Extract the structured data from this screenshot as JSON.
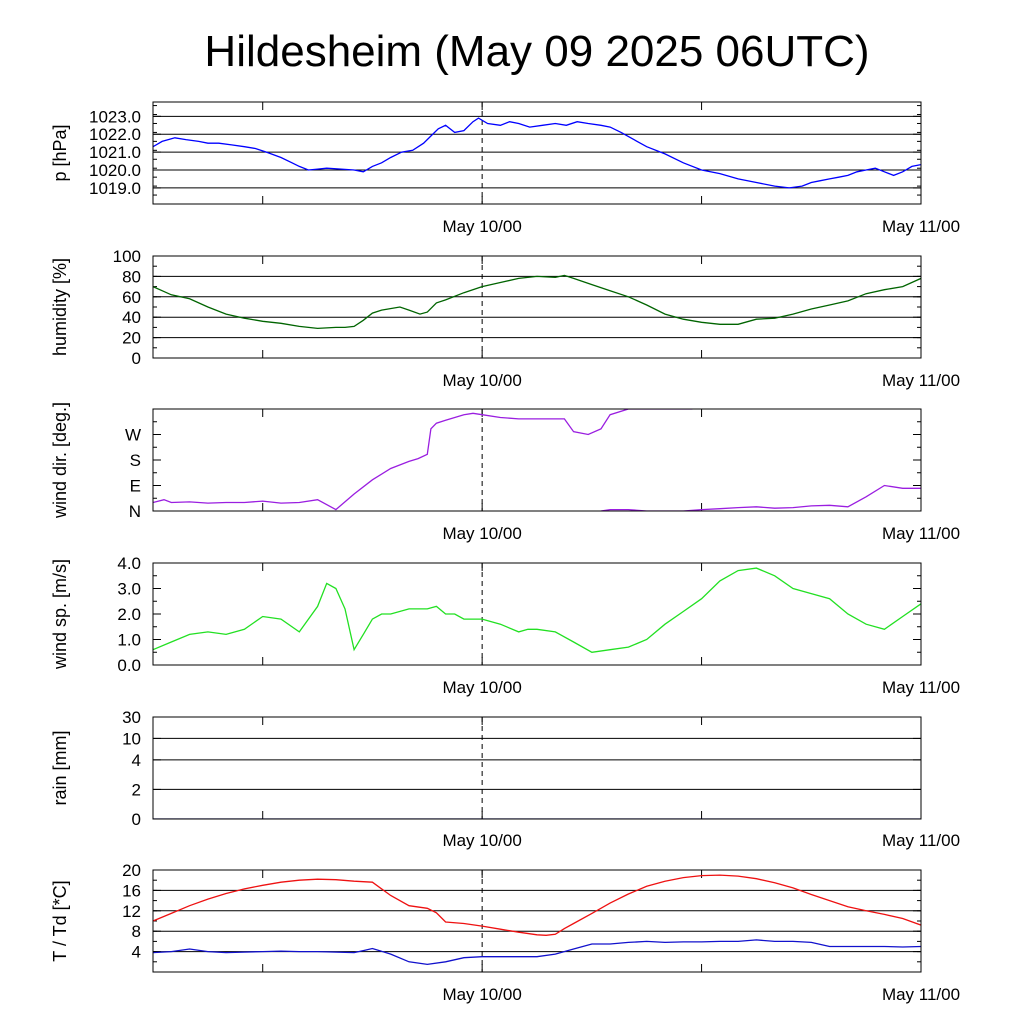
{
  "title": "Hildesheim (May 09 2025 06UTC)",
  "x_tick_labels": [
    "May 10/00",
    "May 11/00"
  ],
  "chart_data": [
    {
      "type": "line",
      "ylabel": "p [hPa]",
      "ylim": [
        1018.1,
        1023.8
      ],
      "yticks": [
        1019.0,
        1020.0,
        1021.0,
        1022.0,
        1023.0
      ],
      "ytick_labels": [
        "1019.0",
        "1020.0",
        "1021.0",
        "1022.0",
        "1023.0"
      ],
      "grid": true,
      "x_unit": "hours since May 09 06UTC",
      "xlim": [
        0,
        42
      ],
      "series": [
        {
          "color": "#0000ff",
          "x": [
            0,
            0.5,
            1.2,
            1.8,
            2.5,
            3.0,
            3.6,
            4.3,
            5.0,
            5.6,
            6.2,
            7.0,
            7.6,
            8.0,
            8.5,
            9.0,
            9.5,
            10.3,
            11.0,
            11.5,
            12.0,
            12.5,
            13.0,
            13.6,
            14.2,
            14.8,
            15.2,
            15.6,
            16.0,
            16.5,
            17.0,
            17.5,
            17.8,
            18.3,
            19.0,
            19.5,
            20.0,
            20.6,
            21.3,
            22.0,
            22.6,
            23.2,
            23.8,
            24.5,
            25.0,
            25.6,
            26.3,
            27.0,
            28.0,
            29.0,
            30.0,
            31.0,
            32.0,
            33.0,
            34.0,
            34.8,
            35.5,
            36.0,
            36.5,
            37.0,
            37.5,
            38.0,
            38.5,
            39.0,
            39.5,
            40.0,
            40.5,
            41.0,
            41.5,
            42.0
          ],
          "values": [
            1021.3,
            1021.6,
            1021.8,
            1021.7,
            1021.6,
            1021.5,
            1021.5,
            1021.4,
            1021.3,
            1021.2,
            1021.0,
            1020.7,
            1020.4,
            1020.2,
            1020.0,
            1020.05,
            1020.1,
            1020.05,
            1020.0,
            1019.9,
            1020.2,
            1020.4,
            1020.7,
            1021.0,
            1021.1,
            1021.5,
            1021.9,
            1022.3,
            1022.5,
            1022.1,
            1022.2,
            1022.7,
            1022.9,
            1022.6,
            1022.5,
            1022.7,
            1022.6,
            1022.4,
            1022.5,
            1022.6,
            1022.5,
            1022.7,
            1022.6,
            1022.5,
            1022.4,
            1022.1,
            1021.7,
            1021.3,
            1020.9,
            1020.4,
            1020.0,
            1019.8,
            1019.5,
            1019.3,
            1019.1,
            1019.0,
            1019.1,
            1019.3,
            1019.4,
            1019.5,
            1019.6,
            1019.7,
            1019.9,
            1020.0,
            1020.1,
            1019.9,
            1019.7,
            1019.9,
            1020.2,
            1020.3
          ]
        }
      ]
    },
    {
      "type": "line",
      "ylabel": "humidity [%]",
      "ylim": [
        0,
        100
      ],
      "yticks": [
        0,
        20,
        40,
        60,
        80,
        100
      ],
      "ytick_labels": [
        "0",
        "20",
        "40",
        "60",
        "80",
        "100"
      ],
      "grid": true,
      "x_unit": "hours since May 09 06UTC",
      "xlim": [
        0,
        42
      ],
      "series": [
        {
          "color": "#006400",
          "x": [
            0,
            0.5,
            1.0,
            2.0,
            3.0,
            4.0,
            5.0,
            6.0,
            7.0,
            8.0,
            9.0,
            10.0,
            10.5,
            11.0,
            11.5,
            12.0,
            12.5,
            13.5,
            14.0,
            14.6,
            15.0,
            15.5,
            16.0,
            17.0,
            18.0,
            19.0,
            20.0,
            21.0,
            22.0,
            22.5,
            23.0,
            24.0,
            25.0,
            26.0,
            27.0,
            28.0,
            29.0,
            30.0,
            31.0,
            32.0,
            33.0,
            34.0,
            35.0,
            36.0,
            37.0,
            38.0,
            39.0,
            40.0,
            41.0,
            42.0
          ],
          "values": [
            70,
            66,
            62,
            58,
            50,
            43,
            39,
            36,
            34,
            31,
            29,
            30,
            30,
            31,
            37,
            44,
            47,
            50,
            47,
            43,
            45,
            54,
            57,
            64,
            70,
            74,
            78,
            80,
            79,
            81,
            78,
            72,
            66,
            60,
            52,
            43,
            38,
            35,
            33,
            33,
            38,
            39,
            43,
            48,
            52,
            56,
            63,
            67,
            70,
            78
          ]
        }
      ]
    },
    {
      "type": "line",
      "ylabel": "wind dir. [deg.]",
      "ylim": [
        0,
        360
      ],
      "yticks": [
        0,
        90,
        180,
        270
      ],
      "ytick_labels": [
        "N",
        "E",
        "S",
        "W"
      ],
      "grid": false,
      "x_unit": "hours since May 09 06UTC",
      "xlim": [
        0,
        42
      ],
      "series": [
        {
          "color": "#9a1ee0",
          "x": [
            0,
            0.6,
            1.0,
            2.0,
            3.0,
            4.0,
            5.0,
            6.0,
            7.0,
            8.0,
            9.0,
            10.0,
            11.0,
            12.0,
            13.0,
            14.0,
            14.5,
            15.0,
            15.2,
            15.5,
            16.0,
            17.0,
            17.5,
            18.0,
            19.0,
            20.0,
            21.0,
            22.0,
            22.5,
            23.0,
            23.8,
            24.5,
            25.0,
            26.0,
            27.0,
            28.0,
            29.5
          ],
          "values": [
            30,
            40,
            30,
            32,
            28,
            30,
            30,
            35,
            28,
            30,
            40,
            5,
            60,
            110,
            150,
            175,
            185,
            200,
            290,
            310,
            320,
            340,
            345,
            340,
            330,
            325,
            325,
            325,
            325,
            280,
            270,
            290,
            340,
            360,
            360,
            360,
            360
          ]
        },
        {
          "color": "#9a1ee0",
          "x": [
            24.5,
            25.0,
            26.0,
            27.0,
            28.0,
            29.0,
            30.0,
            31.0,
            32.0,
            33.0,
            34.0,
            35.0,
            36.0,
            37.0,
            38.0,
            39.0,
            40.0,
            41.0,
            42.0
          ],
          "values": [
            0,
            5,
            5,
            0,
            0,
            0,
            5,
            8,
            12,
            15,
            10,
            12,
            18,
            20,
            15,
            50,
            90,
            80,
            80
          ]
        }
      ]
    },
    {
      "type": "line",
      "ylabel": "wind sp. [m/s]",
      "ylim": [
        0,
        4.0
      ],
      "yticks": [
        0,
        1,
        2,
        3,
        4
      ],
      "ytick_labels": [
        "0.0",
        "1.0",
        "2.0",
        "3.0",
        "4.0"
      ],
      "grid": false,
      "x_unit": "hours since May 09 06UTC",
      "xlim": [
        0,
        42
      ],
      "series": [
        {
          "color": "#22e022",
          "x": [
            0,
            1.0,
            2.0,
            3.0,
            4.0,
            5.0,
            6.0,
            7.0,
            8.0,
            9.0,
            9.5,
            10.0,
            10.5,
            11.0,
            11.5,
            12.0,
            12.5,
            13.0,
            14.0,
            15.0,
            15.5,
            16.0,
            16.5,
            17.0,
            18.0,
            19.0,
            20.0,
            20.5,
            21.0,
            22.0,
            23.0,
            24.0,
            25.0,
            26.0,
            27.0,
            28.0,
            29.0,
            30.0,
            31.0,
            32.0,
            33.0,
            34.0,
            35.0,
            36.0,
            37.0,
            38.0,
            39.0,
            40.0,
            41.0,
            42.0
          ],
          "values": [
            0.6,
            0.9,
            1.2,
            1.3,
            1.2,
            1.4,
            1.9,
            1.8,
            1.3,
            2.3,
            3.2,
            3.0,
            2.2,
            0.6,
            1.2,
            1.8,
            2.0,
            2.0,
            2.2,
            2.2,
            2.3,
            2.0,
            2.0,
            1.8,
            1.8,
            1.6,
            1.3,
            1.4,
            1.4,
            1.3,
            0.9,
            0.5,
            0.6,
            0.7,
            1.0,
            1.6,
            2.1,
            2.6,
            3.3,
            3.7,
            3.8,
            3.5,
            3.0,
            2.8,
            2.6,
            2.0,
            1.6,
            1.4,
            1.9,
            2.4
          ]
        }
      ]
    },
    {
      "type": "line",
      "ylabel": "rain [mm]",
      "ylim": [
        0,
        30
      ],
      "yticks": [
        0,
        2,
        4,
        10,
        30
      ],
      "ytick_labels": [
        "0",
        "2",
        "4",
        "10",
        "30"
      ],
      "yscale": "nonlinear",
      "grid": true,
      "x_unit": "hours since May 09 06UTC",
      "xlim": [
        0,
        42
      ],
      "series": [
        {
          "color": "#000080",
          "x": [
            0,
            42
          ],
          "values": [
            0,
            0
          ]
        }
      ]
    },
    {
      "type": "line",
      "ylabel": "T / Td [*C]",
      "ylim": [
        0,
        20
      ],
      "yticks": [
        4,
        8,
        12,
        16,
        20
      ],
      "ytick_labels": [
        "4",
        "8",
        "12",
        "16",
        "20"
      ],
      "grid": true,
      "x_unit": "hours since May 09 06UTC",
      "xlim": [
        0,
        42
      ],
      "series": [
        {
          "color": "#ee1111",
          "x": [
            0,
            1,
            2,
            3,
            4,
            5,
            6,
            7,
            8,
            9,
            10,
            11,
            12,
            13,
            14,
            15,
            15.5,
            16,
            17,
            18,
            19,
            20,
            21,
            21.5,
            22,
            22.5,
            23,
            24,
            25,
            26,
            27,
            28,
            29,
            30,
            31,
            32,
            33,
            34,
            35,
            36,
            37,
            38,
            39,
            40,
            41,
            42
          ],
          "values": [
            10,
            11.5,
            13,
            14.3,
            15.4,
            16.3,
            17,
            17.6,
            18,
            18.2,
            18.1,
            17.8,
            17.6,
            15,
            13,
            12.5,
            11.6,
            9.8,
            9.5,
            9.0,
            8.4,
            7.8,
            7.3,
            7.2,
            7.4,
            8.5,
            9.5,
            11.5,
            13.5,
            15.3,
            16.8,
            17.8,
            18.5,
            18.9,
            19.0,
            18.8,
            18.3,
            17.5,
            16.5,
            15.2,
            14,
            12.8,
            12,
            11.3,
            10.5,
            9.2
          ]
        },
        {
          "color": "#1111cc",
          "x": [
            0,
            1,
            2,
            3,
            4,
            5,
            6,
            7,
            8,
            9,
            10,
            11,
            11.5,
            12,
            13,
            14,
            15,
            16,
            17,
            18,
            19,
            20,
            21,
            22,
            23,
            24,
            25,
            26,
            27,
            28,
            29,
            30,
            31,
            32,
            33,
            34,
            35,
            36,
            37,
            38,
            39,
            40,
            41,
            42
          ],
          "values": [
            3.8,
            4.0,
            4.5,
            4.0,
            3.8,
            3.9,
            4.0,
            4.1,
            4.0,
            4.0,
            3.9,
            3.8,
            4.2,
            4.6,
            3.5,
            2.0,
            1.5,
            2.0,
            2.8,
            3.0,
            3.0,
            3.0,
            3.0,
            3.5,
            4.5,
            5.5,
            5.5,
            5.8,
            6.0,
            5.8,
            5.9,
            5.9,
            6.0,
            6.0,
            6.3,
            6.0,
            6.0,
            5.8,
            5.0,
            5.0,
            5.0,
            5.0,
            4.9,
            5.0
          ]
        }
      ]
    }
  ]
}
